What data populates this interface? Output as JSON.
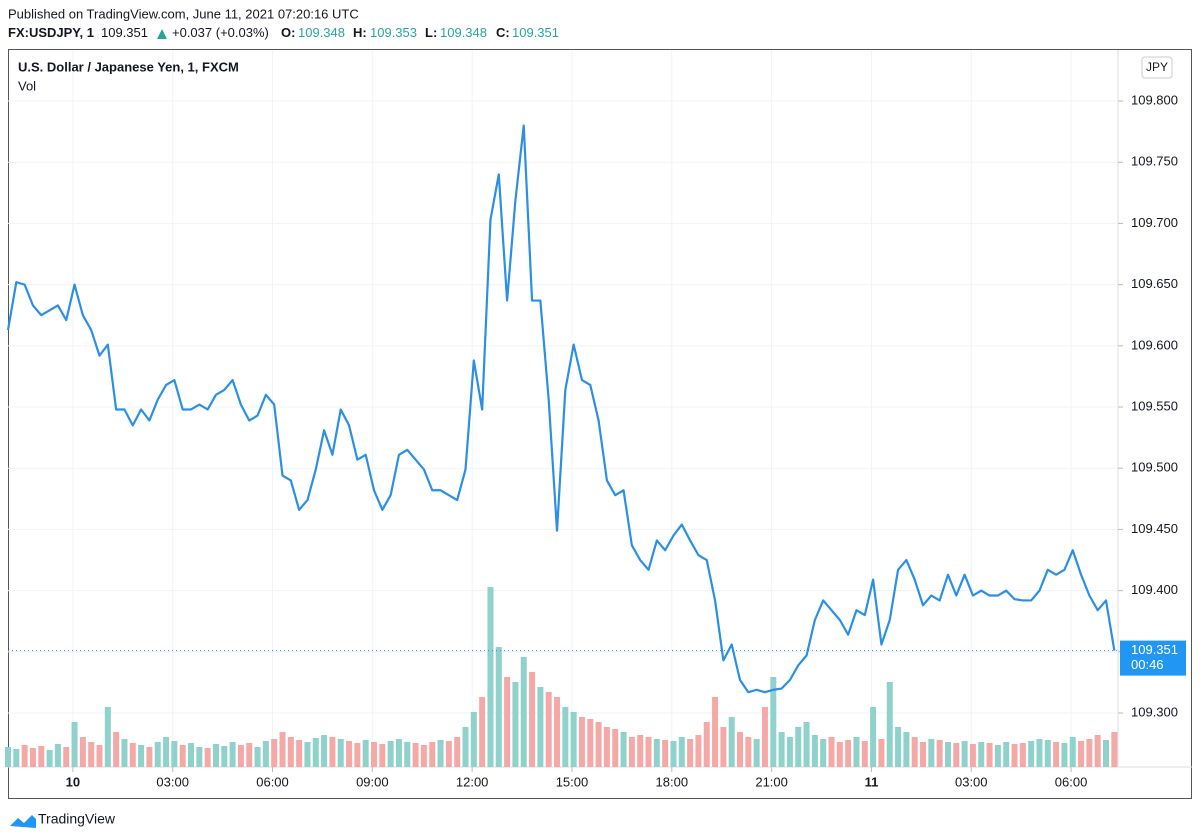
{
  "header": {
    "published": "Published on TradingView.com, June 11, 2021 07:20:16 UTC",
    "symbol": "FX:USDJPY, 1",
    "last": "109.351",
    "change": "+0.037 (+0.03%)",
    "open_label": "O:",
    "open": "109.348",
    "high_label": "H:",
    "high": "109.353",
    "low_label": "L:",
    "low": "109.348",
    "close_label": "C:",
    "close": "109.351",
    "brand": "TradingView"
  },
  "chart_data": {
    "type": "line",
    "title": "U.S. Dollar / Japanese Yen, 1, FXCM",
    "currency": "JPY",
    "last_time": "00:46",
    "grid": true,
    "x": [
      -1.95,
      -1.7,
      -1.45,
      -1.2,
      -0.95,
      -0.7,
      -0.45,
      -0.2,
      0.05,
      0.3,
      0.55,
      0.8,
      1.05,
      1.3,
      1.55,
      1.8,
      2.05,
      2.3,
      2.55,
      2.8,
      3.05,
      3.3,
      3.55,
      3.8,
      4.05,
      4.3,
      4.55,
      4.8,
      5.05,
      5.3,
      5.55,
      5.8,
      6.05,
      6.3,
      6.55,
      6.8,
      7.05,
      7.3,
      7.55,
      7.8,
      8.05,
      8.3,
      8.55,
      8.8,
      9.05,
      9.3,
      9.55,
      9.8,
      10.05,
      10.3,
      10.55,
      10.8,
      11.05,
      11.3,
      11.55,
      11.8,
      12.05,
      12.3,
      12.55,
      12.8,
      13.05,
      13.3,
      13.55,
      13.8,
      14.05,
      14.3,
      14.55,
      14.8,
      15.05,
      15.3,
      15.55,
      15.8,
      16.05,
      16.3,
      16.55,
      16.8,
      17.05,
      17.3,
      17.55,
      17.8,
      18.05,
      18.3,
      18.55,
      18.8,
      19.05,
      19.3,
      19.55,
      19.8,
      20.05,
      20.3,
      20.55,
      20.8,
      21.05,
      21.3,
      21.55,
      21.8,
      22.05,
      22.3,
      22.55,
      22.8,
      23.05,
      23.3,
      23.55,
      23.8,
      24.05,
      24.3,
      24.55,
      24.8,
      25.05,
      25.3,
      25.55,
      25.8,
      26.05,
      26.3,
      26.55,
      26.8,
      27.05,
      27.3,
      27.55,
      27.8,
      28.05,
      28.3,
      28.55,
      28.8,
      29.05,
      29.3,
      29.55,
      29.8,
      30.05,
      30.3,
      30.55,
      30.8,
      31.05,
      31.3
    ],
    "xlim": [
      -1.95,
      31.41
    ],
    "xticks": [
      {
        "value": 0,
        "label": "10"
      },
      {
        "value": 3,
        "label": "03:00"
      },
      {
        "value": 6,
        "label": "06:00"
      },
      {
        "value": 9,
        "label": "09:00"
      },
      {
        "value": 12,
        "label": "12:00"
      },
      {
        "value": 15,
        "label": "15:00"
      },
      {
        "value": 18,
        "label": "18:00"
      },
      {
        "value": 21,
        "label": "21:00"
      },
      {
        "value": 24,
        "label": "11"
      },
      {
        "value": 27,
        "label": "03:00"
      },
      {
        "value": 30,
        "label": "06:00"
      }
    ],
    "ylim": [
      109.2559,
      109.8417
    ],
    "yticks": [
      {
        "value": 109.3,
        "label": "109.300"
      },
      {
        "value": 109.35,
        "label": "109.350"
      },
      {
        "value": 109.4,
        "label": "109.400"
      },
      {
        "value": 109.45,
        "label": "109.450"
      },
      {
        "value": 109.5,
        "label": "109.500"
      },
      {
        "value": 109.55,
        "label": "109.550"
      },
      {
        "value": 109.6,
        "label": "109.600"
      },
      {
        "value": 109.65,
        "label": "109.650"
      },
      {
        "value": 109.7,
        "label": "109.700"
      },
      {
        "value": 109.75,
        "label": "109.750"
      },
      {
        "value": 109.8,
        "label": "109.800"
      }
    ],
    "series": [
      {
        "color": "#2b8fe3",
        "values": [
          109.613,
          109.652,
          109.65,
          109.633,
          109.625,
          109.629,
          109.633,
          109.621,
          109.65,
          109.625,
          109.613,
          109.592,
          109.601,
          109.548,
          109.548,
          109.535,
          109.548,
          109.539,
          109.556,
          109.568,
          109.572,
          109.548,
          109.548,
          109.552,
          109.548,
          109.56,
          109.564,
          109.572,
          109.552,
          109.539,
          109.543,
          109.56,
          109.552,
          109.494,
          109.49,
          109.466,
          109.474,
          109.499,
          109.531,
          109.511,
          109.548,
          109.535,
          109.507,
          109.511,
          109.482,
          109.466,
          109.478,
          109.511,
          109.515,
          109.507,
          109.499,
          109.482,
          109.482,
          109.478,
          109.474,
          109.499,
          109.588,
          109.548,
          109.703,
          109.74,
          109.637,
          109.719,
          109.78,
          109.637,
          109.637,
          109.556,
          109.449,
          109.564,
          109.601,
          109.572,
          109.568,
          109.539,
          109.49,
          109.478,
          109.482,
          109.437,
          109.425,
          109.417,
          109.441,
          109.433,
          109.445,
          109.454,
          109.441,
          109.429,
          109.425,
          109.392,
          109.343,
          109.356,
          109.327,
          109.317,
          109.319,
          109.317,
          109.319,
          109.32,
          109.327,
          109.339,
          109.347,
          109.376,
          109.392,
          109.384,
          109.376,
          109.364,
          109.384,
          109.38,
          109.409,
          109.356,
          109.376,
          109.417,
          109.425,
          109.409,
          109.388,
          109.396,
          109.392,
          109.413,
          109.396,
          109.413,
          109.396,
          109.4,
          109.396,
          109.396,
          109.4,
          109.393,
          109.392,
          109.392,
          109.4,
          109.417,
          109.413,
          109.417,
          109.433,
          109.413,
          109.396,
          109.384,
          109.392,
          109.351
        ]
      },
      {
        "name": "Vol",
        "type": "bar",
        "up_color": "#8fd2cb",
        "down_color": "#f5a9a7",
        "values": [
          20,
          18,
          22,
          19,
          21,
          17,
          23,
          20,
          45,
          30,
          25,
          22,
          60,
          35,
          28,
          24,
          22,
          20,
          25,
          30,
          26,
          22,
          24,
          20,
          19,
          23,
          21,
          25,
          22,
          24,
          20,
          26,
          28,
          35,
          30,
          27,
          25,
          29,
          32,
          30,
          28,
          26,
          24,
          27,
          25,
          23,
          26,
          28,
          25,
          24,
          22,
          25,
          27,
          26,
          30,
          40,
          55,
          70,
          180,
          120,
          90,
          85,
          110,
          95,
          80,
          75,
          70,
          60,
          55,
          50,
          48,
          45,
          40,
          38,
          35,
          30,
          32,
          30,
          28,
          27,
          26,
          30,
          28,
          32,
          45,
          70,
          40,
          50,
          35,
          30,
          28,
          60,
          90,
          35,
          30,
          40,
          45,
          32,
          28,
          30,
          25,
          27,
          30,
          26,
          60,
          28,
          85,
          40,
          35,
          30,
          25,
          28,
          27,
          25,
          24,
          26,
          23,
          25,
          24,
          22,
          25,
          23,
          24,
          26,
          28,
          27,
          25,
          24,
          30,
          26,
          28,
          32,
          27,
          35
        ]
      }
    ]
  }
}
